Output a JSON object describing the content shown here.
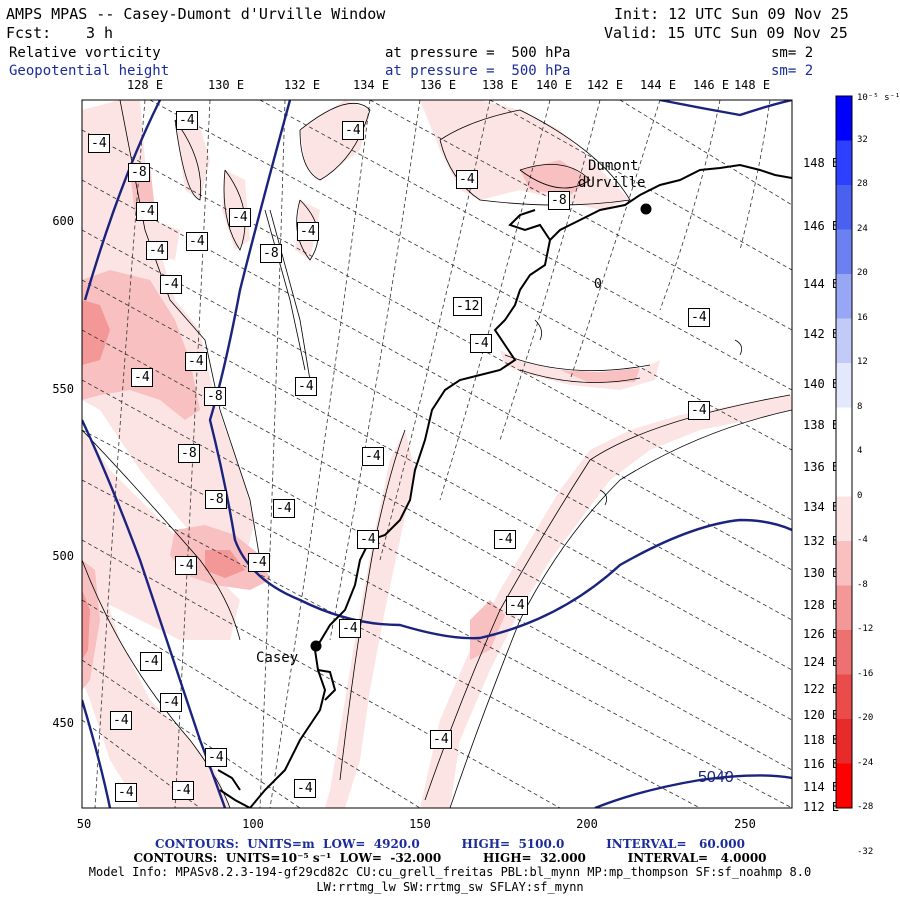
{
  "header": {
    "title": "AMPS MPAS -- Casey-Dumont d'Urville Window",
    "init": "Init: 12 UTC Sun 09 Nov 25",
    "fcst_label": "Fcst:",
    "fcst_value": "3 h",
    "valid": "Valid: 15 UTC Sun 09 Nov 25",
    "field1": {
      "name": "Relative vorticity",
      "level": "at pressure =  500 hPa",
      "sm": "sm= 2"
    },
    "field2": {
      "name": "Geopotential height",
      "level": "at pressure =  500 hPa",
      "sm": "sm= 2"
    }
  },
  "map": {
    "top_longitudes": [
      "128 E",
      "130 E",
      "132 E",
      "134 E",
      "136 E",
      "138 E",
      "140 E",
      "142 E",
      "144 E",
      "146 E",
      "148 E"
    ],
    "right_longitudes": [
      "148 E",
      "146 E",
      "144 E",
      "142 E",
      "140 E",
      "138 E",
      "136 E",
      "134 E",
      "132 E",
      "130 E",
      "128 E",
      "126 E",
      "124 E",
      "122 E",
      "120 E",
      "118 E",
      "116 E",
      "114 E",
      "112 E"
    ],
    "y_ticks": [
      "600",
      "550",
      "500",
      "450"
    ],
    "x_ticks": [
      "50",
      "100",
      "150",
      "200",
      "250"
    ],
    "stations": [
      {
        "name_lines": [
          "Dumont",
          "dUrville"
        ]
      },
      {
        "name_lines": [
          "Casey"
        ]
      }
    ],
    "height_contour_label": "5040",
    "vort_labels": [
      "-4",
      "-4",
      "-4",
      "-8",
      "-4",
      "-4",
      "-4",
      "-4",
      "-4",
      "-8",
      "-4",
      "-4",
      "-8",
      "-12",
      "-4",
      "-4",
      "-4",
      "-4",
      "-4",
      "-8",
      "-4",
      "-8",
      "-8",
      "-4",
      "-4",
      "-4",
      "-4",
      "-4",
      "-4",
      "-4",
      "-4",
      "-4",
      "-4",
      "-4",
      "-4",
      "-4",
      "-4",
      "-4",
      "-4"
    ],
    "zero_label": "0"
  },
  "colorbar": {
    "unit": "10⁻⁵ s⁻¹",
    "labels": [
      "32",
      "28",
      "24",
      "20",
      "16",
      "12",
      "8",
      "4",
      "0",
      "-4",
      "-8",
      "-12",
      "-16",
      "-20",
      "-24",
      "-28",
      "-32"
    ],
    "colors": [
      "#0000ff",
      "#2d3fff",
      "#4a61f0",
      "#6c80f2",
      "#97a6f5",
      "#c2cbf8",
      "#e4e8fc",
      "#ffffff",
      "#ffffff",
      "#fde4e4",
      "#f8c0c0",
      "#f39797",
      "#ee7070",
      "#ea4c4c",
      "#e72a2a",
      "#ff0000"
    ]
  },
  "footer": {
    "line1": "CONTOURS:  UNITS=m  LOW=  4920.0          HIGH=  5100.0          INTERVAL=   60.000",
    "line2": "CONTOURS:  UNITS=10⁻⁵ s⁻¹  LOW=  -32.000          HIGH=  32.000          INTERVAL=   4.0000",
    "line3": "Model Info: MPASv8.2.3-194-gf29cd82c CU:cu_grell_freitas PBL:bl_mynn MP:mp_thompson SF:sf_noahmp 8.0",
    "line4": "LW:rrtmg_lw SW:rrtmg_sw SFLAY:sf_mynn"
  }
}
